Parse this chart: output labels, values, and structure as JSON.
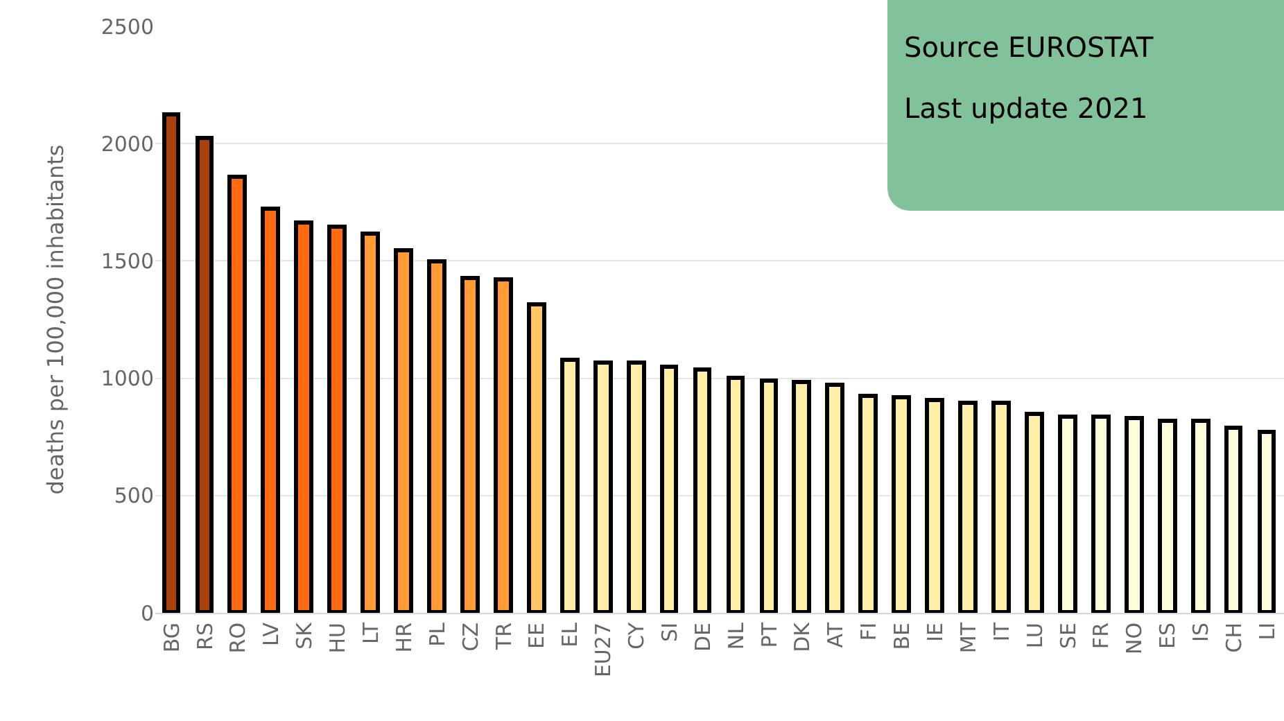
{
  "chart_data": {
    "type": "bar",
    "ylabel": "deaths per 100,000 inhabitants",
    "categories": [
      "BG",
      "RS",
      "RO",
      "LV",
      "SK",
      "HU",
      "LT",
      "HR",
      "PL",
      "CZ",
      "TR",
      "EE",
      "EL",
      "EU27",
      "CY",
      "SI",
      "DE",
      "NL",
      "PT",
      "DK",
      "AT",
      "FI",
      "BE",
      "IE",
      "MT",
      "IT",
      "LU",
      "SE",
      "FR",
      "NO",
      "ES",
      "IS",
      "CH",
      "LI"
    ],
    "values": [
      2120,
      2024,
      1854,
      1720,
      1663,
      1645,
      1615,
      1540,
      1493,
      1426,
      1416,
      1314,
      1075,
      1065,
      1065,
      1047,
      1037,
      1000,
      988,
      980,
      970,
      923,
      915,
      903,
      894,
      894,
      846,
      836,
      836,
      826,
      816,
      816,
      789,
      769
    ],
    "colors": [
      "#a8400e",
      "#a8400e",
      "#ff6a13",
      "#ff6a13",
      "#ff6a13",
      "#ff6a13",
      "#ff9a35",
      "#ff9a35",
      "#ff9a35",
      "#ff9a35",
      "#ff9a35",
      "#ffc766",
      "#ffeeaa",
      "#ffeeaa",
      "#ffeeaa",
      "#ffeeaa",
      "#ffeeaa",
      "#ffeeaa",
      "#ffeeaa",
      "#ffeeaa",
      "#ffeeaa",
      "#ffeeaa",
      "#ffeeaa",
      "#ffeeaa",
      "#ffeeaa",
      "#ffeeaa",
      "#ffeeaa",
      "#fffbdc",
      "#fffbdc",
      "#fffbdc",
      "#fffbdc",
      "#fffbdc",
      "#fffbdc",
      "#fffbdc"
    ],
    "ylim": [
      0,
      2500
    ],
    "yticks": [
      0,
      500,
      1000,
      1500,
      2000,
      2500
    ],
    "grid": "y",
    "annotations": [
      "Source EUROSTAT",
      "Last update 2021"
    ]
  }
}
